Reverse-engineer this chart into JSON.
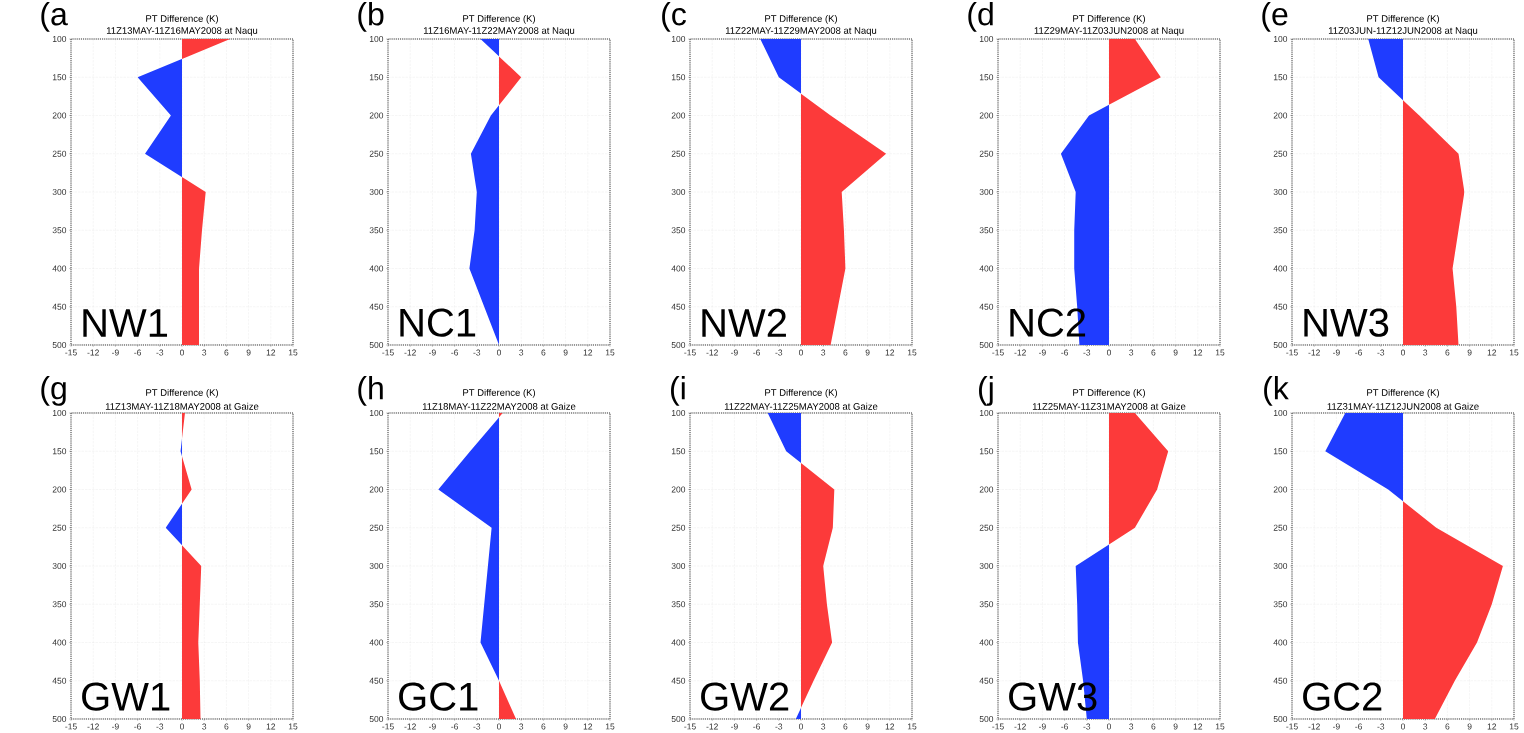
{
  "chart_data": [
    {
      "type": "area",
      "orientation": "horizontal",
      "title": "PT Difference (K)",
      "subtitle": "11Z13MAY-11Z16MAY2008 at Naqu",
      "annotations": [
        "(a",
        "NW1"
      ],
      "categories": [
        "100",
        "150",
        "200",
        "250",
        "300",
        "350",
        "400",
        "450",
        "500"
      ],
      "values": [
        6.5,
        -6,
        -1.5,
        -5,
        3.2,
        2.7,
        2.3,
        2.3,
        2.3
      ],
      "colors": [
        "#fc3a3a",
        "#1f3cff",
        "#1f3cff",
        "#1f3cff",
        "#fc3a3a",
        "#fc3a3a",
        "#fc3a3a",
        "#fc3a3a",
        "#fc3a3a"
      ],
      "xlim": [
        -15,
        15
      ],
      "xticks": [
        -15,
        -12,
        -9,
        -6,
        -3,
        0,
        3,
        6,
        9,
        12,
        15
      ],
      "grid": true
    },
    {
      "type": "area",
      "orientation": "horizontal",
      "title": "PT Difference (K)",
      "subtitle": "11Z16MAY-11Z22MAY2008 at Naqu",
      "annotations": [
        "(b",
        "NC1"
      ],
      "categories": [
        "100",
        "150",
        "200",
        "250",
        "300",
        "350",
        "400",
        "450",
        "500"
      ],
      "values": [
        -2.5,
        3,
        -1.1,
        -3.8,
        -3,
        -3.3,
        -4,
        -2,
        0
      ],
      "colors": [
        "#1f3cff",
        "#fc3a3a",
        "#1f3cff",
        "#1f3cff",
        "#1f3cff",
        "#1f3cff",
        "#1f3cff",
        "#1f3cff",
        "#1f3cff"
      ],
      "xlim": [
        -15,
        15
      ],
      "xticks": [
        -15,
        -12,
        -9,
        -6,
        -3,
        0,
        3,
        6,
        9,
        12,
        15
      ],
      "grid": true
    },
    {
      "type": "area",
      "orientation": "horizontal",
      "title": "PT Difference (K)",
      "subtitle": "11Z22MAY-11Z29MAY2008 at Naqu",
      "annotations": [
        "(c",
        "NW2"
      ],
      "categories": [
        "100",
        "150",
        "200",
        "250",
        "300",
        "350",
        "400",
        "450",
        "500"
      ],
      "values": [
        -5.5,
        -3,
        4,
        11.5,
        5.5,
        5.8,
        6,
        5,
        4
      ],
      "colors": [
        "#1f3cff",
        "#1f3cff",
        "#fc3a3a",
        "#fc3a3a",
        "#fc3a3a",
        "#fc3a3a",
        "#fc3a3a",
        "#fc3a3a",
        "#fc3a3a"
      ],
      "xlim": [
        -15,
        15
      ],
      "xticks": [
        -15,
        -12,
        -9,
        -6,
        -3,
        0,
        3,
        6,
        9,
        12,
        15
      ],
      "grid": true
    },
    {
      "type": "area",
      "orientation": "horizontal",
      "title": "PT Difference (K)",
      "subtitle": "11Z29MAY-11Z03JUN2008 at Naqu",
      "annotations": [
        "(d",
        "NC2"
      ],
      "categories": [
        "100",
        "150",
        "200",
        "250",
        "300",
        "350",
        "400",
        "450",
        "500"
      ],
      "values": [
        3.5,
        7,
        -2.7,
        -6.5,
        -4.5,
        -4.7,
        -4.7,
        -4.3,
        -4
      ],
      "colors": [
        "#fc3a3a",
        "#fc3a3a",
        "#1f3cff",
        "#1f3cff",
        "#1f3cff",
        "#1f3cff",
        "#1f3cff",
        "#1f3cff",
        "#1f3cff"
      ],
      "xlim": [
        -15,
        15
      ],
      "xticks": [
        -15,
        -12,
        -9,
        -6,
        -3,
        0,
        3,
        6,
        9,
        12,
        15
      ],
      "grid": true
    },
    {
      "type": "area",
      "orientation": "horizontal",
      "title": "PT Difference (K)",
      "subtitle": "11Z03JUN-11Z12JUN2008 at Naqu",
      "annotations": [
        "(e",
        "NW3"
      ],
      "categories": [
        "100",
        "150",
        "200",
        "250",
        "300",
        "350",
        "400",
        "450",
        "500"
      ],
      "values": [
        -4.7,
        -3.3,
        2.2,
        7.5,
        8.3,
        7.5,
        6.7,
        7.2,
        7.5
      ],
      "colors": [
        "#1f3cff",
        "#1f3cff",
        "#fc3a3a",
        "#fc3a3a",
        "#fc3a3a",
        "#fc3a3a",
        "#fc3a3a",
        "#fc3a3a",
        "#fc3a3a"
      ],
      "xlim": [
        -15,
        15
      ],
      "xticks": [
        -15,
        -12,
        -9,
        -6,
        -3,
        0,
        3,
        6,
        9,
        12,
        15
      ],
      "grid": true
    },
    {
      "type": "area",
      "orientation": "horizontal",
      "title": "PT Difference (K)",
      "subtitle": "11Z13MAY-11Z18MAY2008 at Gaize",
      "annotations": [
        "(g",
        "GW1"
      ],
      "categories": [
        "100",
        "150",
        "200",
        "250",
        "300",
        "350",
        "400",
        "450",
        "500"
      ],
      "values": [
        0.4,
        -0.2,
        1.3,
        -2.2,
        2.6,
        2.4,
        2.2,
        2.4,
        2.5
      ],
      "colors": [
        "#fc3a3a",
        "#1f3cff",
        "#fc3a3a",
        "#1f3cff",
        "#fc3a3a",
        "#fc3a3a",
        "#fc3a3a",
        "#fc3a3a",
        "#fc3a3a"
      ],
      "xlim": [
        -15,
        15
      ],
      "xticks": [
        -15,
        -12,
        -9,
        -6,
        -3,
        0,
        3,
        6,
        9,
        12,
        15
      ],
      "grid": true
    },
    {
      "type": "area",
      "orientation": "horizontal",
      "title": "PT Difference (K)",
      "subtitle": "11Z18MAY-11Z22MAY2008 at Gaize",
      "annotations": [
        "(h",
        "GC1"
      ],
      "categories": [
        "100",
        "150",
        "200",
        "250",
        "300",
        "350",
        "400",
        "450",
        "500"
      ],
      "values": [
        0.5,
        -3.9,
        -8.2,
        -1,
        -1.5,
        -2,
        -2.5,
        0,
        2.3
      ],
      "colors": [
        "#fc3a3a",
        "#1f3cff",
        "#1f3cff",
        "#1f3cff",
        "#1f3cff",
        "#1f3cff",
        "#1f3cff",
        "#fc3a3a",
        "#fc3a3a"
      ],
      "xlim": [
        -15,
        15
      ],
      "xticks": [
        -15,
        -12,
        -9,
        -6,
        -3,
        0,
        3,
        6,
        9,
        12,
        15
      ],
      "grid": true
    },
    {
      "type": "area",
      "orientation": "horizontal",
      "title": "PT Difference (K)",
      "subtitle": "11Z22MAY-11Z25MAY2008 at Gaize",
      "annotations": [
        "(i",
        "GW2"
      ],
      "categories": [
        "100",
        "150",
        "200",
        "250",
        "300",
        "350",
        "400",
        "450",
        "500"
      ],
      "values": [
        -4.5,
        -2,
        4.5,
        4.3,
        3,
        3.5,
        4.2,
        1.7,
        -0.7
      ],
      "colors": [
        "#1f3cff",
        "#1f3cff",
        "#fc3a3a",
        "#fc3a3a",
        "#fc3a3a",
        "#fc3a3a",
        "#fc3a3a",
        "#fc3a3a",
        "#1f3cff"
      ],
      "xlim": [
        -15,
        15
      ],
      "xticks": [
        -15,
        -12,
        -9,
        -6,
        -3,
        0,
        3,
        6,
        9,
        12,
        15
      ],
      "grid": true
    },
    {
      "type": "area",
      "orientation": "horizontal",
      "title": "PT Difference (K)",
      "subtitle": "11Z25MAY-11Z31MAY2008 at Gaize",
      "annotations": [
        "(j",
        "GW3"
      ],
      "categories": [
        "100",
        "150",
        "200",
        "250",
        "300",
        "350",
        "400",
        "450",
        "500"
      ],
      "values": [
        3.5,
        8,
        6.5,
        3.5,
        -4.5,
        -4.3,
        -4.2,
        -3.5,
        -3
      ],
      "colors": [
        "#fc3a3a",
        "#fc3a3a",
        "#fc3a3a",
        "#fc3a3a",
        "#1f3cff",
        "#1f3cff",
        "#1f3cff",
        "#1f3cff",
        "#1f3cff"
      ],
      "xlim": [
        -15,
        15
      ],
      "xticks": [
        -15,
        -12,
        -9,
        -6,
        -3,
        0,
        3,
        6,
        9,
        12,
        15
      ],
      "grid": true
    },
    {
      "type": "area",
      "orientation": "horizontal",
      "title": "PT Difference (K)",
      "subtitle": "11Z31MAY-11Z12JUN2008 at Gaize",
      "annotations": [
        "(k",
        "GC2"
      ],
      "categories": [
        "100",
        "150",
        "200",
        "250",
        "300",
        "350",
        "400",
        "450",
        "500"
      ],
      "values": [
        -7.8,
        -10.5,
        -2,
        4.5,
        13.5,
        12,
        10,
        7,
        4.3
      ],
      "colors": [
        "#1f3cff",
        "#1f3cff",
        "#1f3cff",
        "#fc3a3a",
        "#fc3a3a",
        "#fc3a3a",
        "#fc3a3a",
        "#fc3a3a",
        "#fc3a3a"
      ],
      "xlim": [
        -15,
        15
      ],
      "xticks": [
        -15,
        -12,
        -9,
        -6,
        -3,
        0,
        3,
        6,
        9,
        12,
        15
      ],
      "grid": true
    }
  ]
}
